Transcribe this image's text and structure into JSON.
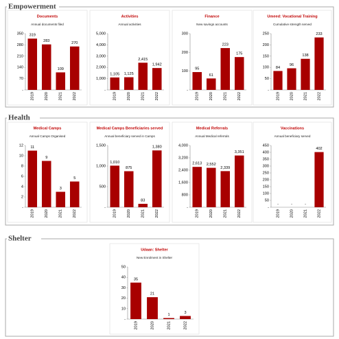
{
  "sections": [
    {
      "title": "Empowerment"
    },
    {
      "title": "Health"
    },
    {
      "title": "Shelter"
    }
  ],
  "chart_data": [
    {
      "type": "bar",
      "title": "Documents",
      "subtitle": "Annual documents filed",
      "color": "#a80000",
      "categories": [
        "2019",
        "2020",
        "2021",
        "2022"
      ],
      "values": [
        319,
        283,
        109,
        270
      ],
      "ylim": [
        0,
        350
      ],
      "yticks": [
        {
          "value": 0,
          "label": "-"
        },
        70,
        140,
        210,
        280,
        350
      ]
    },
    {
      "type": "bar",
      "title": "Activities",
      "subtitle": "Annual activities",
      "color": "#a80000",
      "categories": [
        "2019",
        "2020",
        "2021",
        "2022"
      ],
      "values": [
        1105,
        1125,
        2415,
        1942
      ],
      "value_labels": [
        "1,105",
        "1,125",
        "2,415",
        "1,942"
      ],
      "ylim": [
        0,
        5000
      ],
      "yticks": [
        {
          "value": 0,
          "label": "-"
        },
        {
          "value": 1000,
          "label": "1,000"
        },
        {
          "value": 2000,
          "label": "2,000"
        },
        {
          "value": 3000,
          "label": "3,000"
        },
        {
          "value": 4000,
          "label": "4,000"
        },
        {
          "value": 5000,
          "label": "5,000"
        }
      ]
    },
    {
      "type": "bar",
      "title": "Finance",
      "subtitle": "New savings accounts",
      "color": "#a80000",
      "categories": [
        "2019",
        "2020",
        "2021",
        "2022"
      ],
      "values": [
        95,
        61,
        223,
        175
      ],
      "ylim": [
        0,
        300
      ],
      "yticks": [
        {
          "value": 0,
          "label": "-"
        },
        100,
        200,
        300
      ]
    },
    {
      "type": "bar",
      "title": "Umeed: Vocational Training",
      "subtitle": "Cumulative strength served",
      "color": "#a80000",
      "categories": [
        "2019",
        "2020",
        "2021",
        "2022"
      ],
      "values": [
        84,
        96,
        138,
        233
      ],
      "ylim": [
        0,
        250
      ],
      "yticks": [
        {
          "value": 0,
          "label": "-"
        },
        50,
        100,
        150,
        200,
        250
      ]
    },
    {
      "type": "bar",
      "title": "Medical Camps",
      "subtitle": "Annual Camps Organised",
      "color": "#a80000",
      "categories": [
        "2019",
        "2020",
        "2021",
        "2022"
      ],
      "values": [
        11,
        9,
        3,
        5
      ],
      "ylim": [
        0,
        12
      ],
      "yticks": [
        {
          "value": 0,
          "label": "-"
        },
        2,
        4,
        6,
        8,
        10,
        12
      ]
    },
    {
      "type": "bar",
      "title": "Medical Camps Beneficiaries served",
      "subtitle": "Annual beneficiary served in Camps",
      "color": "#a80000",
      "categories": [
        "2019",
        "2020",
        "2021",
        "2022"
      ],
      "values": [
        1010,
        875,
        83,
        1380
      ],
      "value_labels": [
        "1,010",
        "875",
        "83",
        "1,380"
      ],
      "ylim": [
        0,
        1500
      ],
      "yticks": [
        {
          "value": 0,
          "label": "-"
        },
        500,
        {
          "value": 1000,
          "label": "1,000"
        },
        {
          "value": 1500,
          "label": "1,500"
        }
      ]
    },
    {
      "type": "bar",
      "title": "Medical Referrals",
      "subtitle": "Annual Medical referrals",
      "color": "#a80000",
      "categories": [
        "2019",
        "2020",
        "2021",
        "2022"
      ],
      "values": [
        2613,
        2552,
        2339,
        3351
      ],
      "value_labels": [
        "2,613",
        "2,552",
        "2,339",
        "3,351"
      ],
      "ylim": [
        0,
        4000
      ],
      "yticks": [
        {
          "value": 0,
          "label": "-"
        },
        800,
        {
          "value": 1600,
          "label": "1,600"
        },
        {
          "value": 2400,
          "label": "2,400"
        },
        {
          "value": 3200,
          "label": "3,200"
        },
        {
          "value": 4000,
          "label": "4,000"
        }
      ]
    },
    {
      "type": "bar",
      "title": "Vaccinations",
      "subtitle": "Annual beneficiary served",
      "color": "#a80000",
      "categories": [
        "2019",
        "2020",
        "2021",
        "2022"
      ],
      "values": [
        0,
        0,
        0,
        402
      ],
      "value_labels": [
        "-",
        "-",
        "-",
        "402"
      ],
      "ylim": [
        0,
        450
      ],
      "yticks": [
        {
          "value": 0,
          "label": "-"
        },
        50,
        100,
        150,
        200,
        250,
        300,
        350,
        400,
        450
      ]
    },
    {
      "type": "bar",
      "title": "Udaan: Shelter",
      "subtitle": "New Enrolment in Shelter",
      "color": "#a80000",
      "categories": [
        "2019",
        "2020",
        "2021",
        "2022"
      ],
      "values": [
        35,
        21,
        1,
        3
      ],
      "ylim": [
        0,
        50
      ],
      "yticks": [
        {
          "value": 0,
          "label": "-"
        },
        10,
        20,
        30,
        40,
        50
      ]
    }
  ]
}
